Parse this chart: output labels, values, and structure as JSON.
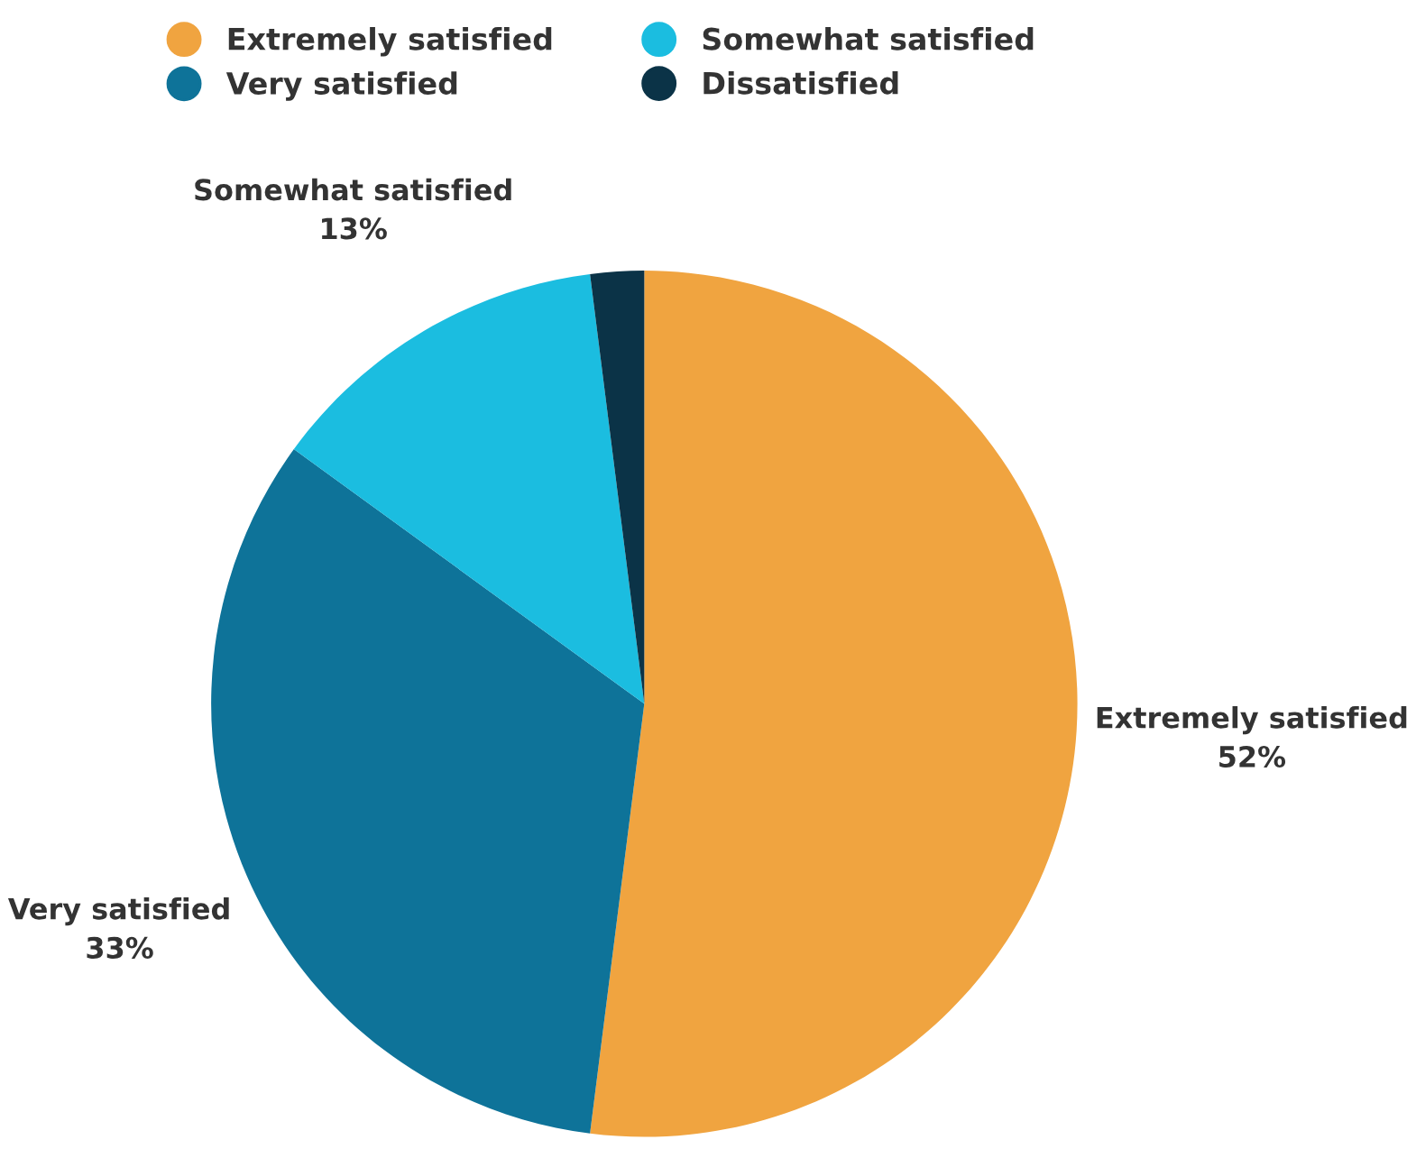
{
  "chart_data": {
    "type": "pie",
    "categories": [
      "Extremely satisfied",
      "Very satisfied",
      "Somewhat satisfied",
      "Dissatisfied"
    ],
    "values": [
      52,
      33,
      13,
      2
    ],
    "colors": [
      "#f0a440",
      "#0e7399",
      "#1bbde0",
      "#0b3347"
    ],
    "value_labels": [
      "52%",
      "33%",
      "13%",
      null
    ],
    "legend": "top"
  }
}
